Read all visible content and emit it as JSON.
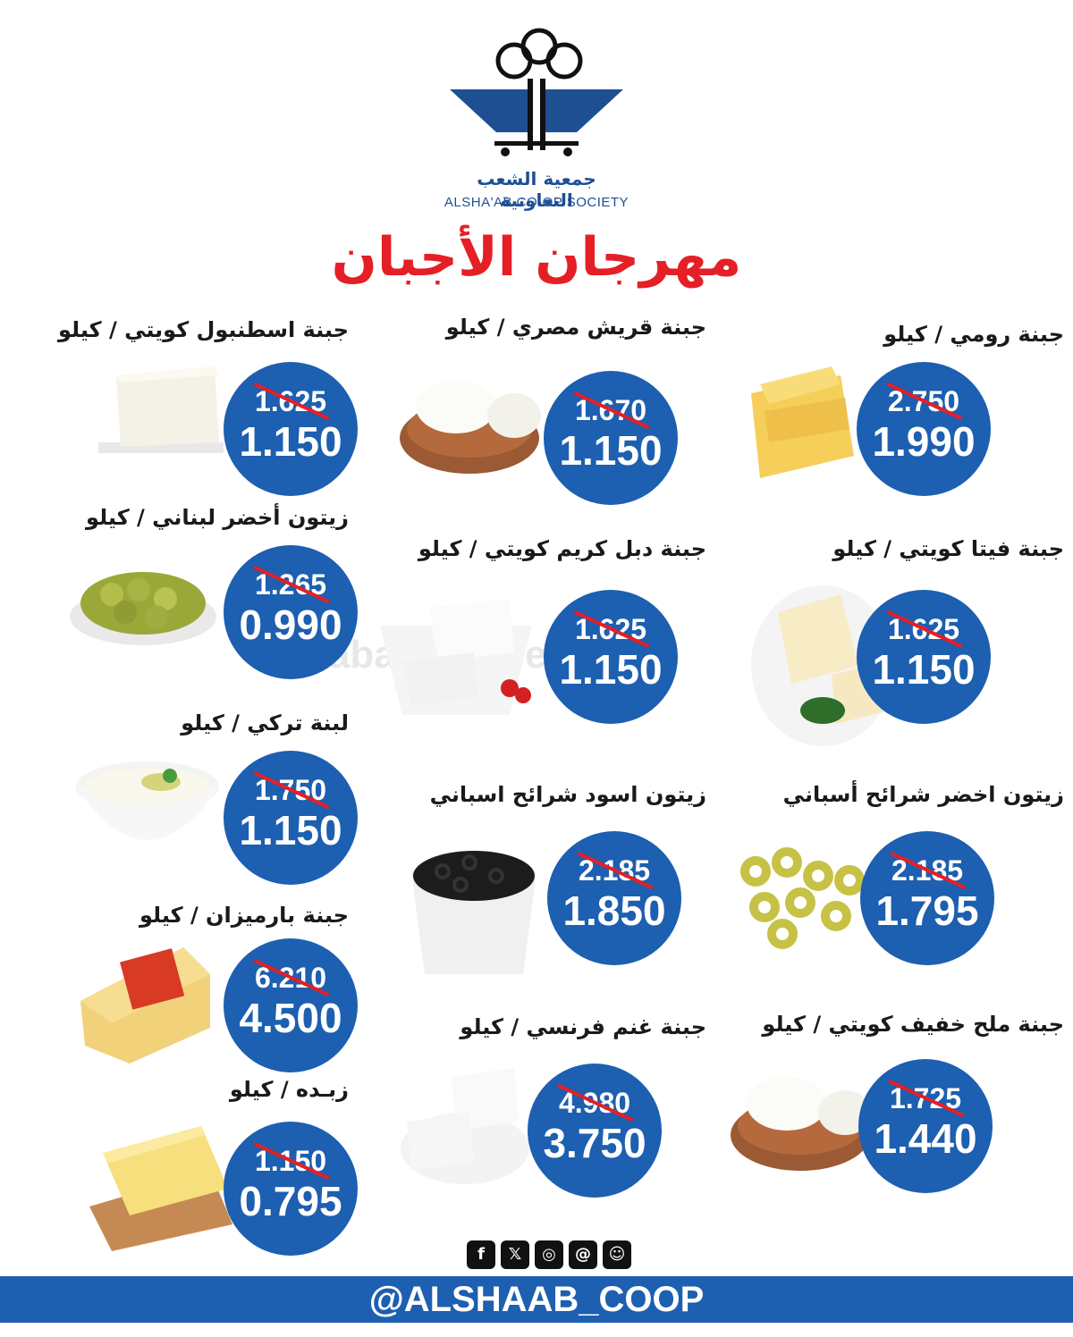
{
  "logo": {
    "arabic": "جمعية الشعب التعاونية",
    "english": "ALSHA'AB CO-OP SOCIETY"
  },
  "title": "مهرجان الأجبان",
  "watermark": "Yabalashoffers.com",
  "products": [
    {
      "name": "جبنة رومي / كيلو",
      "old_price": "2.750",
      "new_price": "1.990",
      "icon": "yellow-cheese-slices"
    },
    {
      "name": "جبنة قريش مصري / كيلو",
      "old_price": "1.670",
      "new_price": "1.150",
      "icon": "white-cheese-board"
    },
    {
      "name": "جبنة اسطنبول كويتي / كيلو",
      "old_price": "1.625",
      "new_price": "1.150",
      "icon": "white-cheese-block"
    },
    {
      "name": "جبنة فيتا كويتي / كيلو",
      "old_price": "1.625",
      "new_price": "1.150",
      "icon": "feta-cheese-plate"
    },
    {
      "name": "جبنة دبل كريم كويتي / كيلو",
      "old_price": "1.625",
      "new_price": "1.150",
      "icon": "cream-cheese-plate"
    },
    {
      "name": "زيتون أخضر لبناني / كيلو",
      "old_price": "1.265",
      "new_price": "0.990",
      "icon": "green-olives-plate"
    },
    {
      "name": "زيتون اخضر شرائح أسباني",
      "old_price": "2.185",
      "new_price": "1.795",
      "icon": "green-olive-slices"
    },
    {
      "name": "زيتون اسود شرائح اسباني",
      "old_price": "2.185",
      "new_price": "1.850",
      "icon": "black-olive-slices"
    },
    {
      "name": "لبنة تركي / كيلو",
      "old_price": "1.750",
      "new_price": "1.150",
      "icon": "labneh-bowl"
    },
    {
      "name": "جبنة بارميزان / كيلو",
      "old_price": "6.210",
      "new_price": "4.500",
      "icon": "parmesan-wedge"
    },
    {
      "name": "جبنة ملح خفيف كويتي / كيلو",
      "old_price": "1.725",
      "new_price": "1.440",
      "icon": "white-cheese-board"
    },
    {
      "name": "جبنة غنم فرنسي / كيلو",
      "old_price": "4.980",
      "new_price": "3.750",
      "icon": "sheep-cheese-slices"
    },
    {
      "name": "زبـده / كيلو",
      "old_price": "1.150",
      "new_price": "0.795",
      "icon": "butter-block"
    }
  ],
  "social": [
    "f",
    "𝕏",
    "◎",
    "@",
    "☺"
  ],
  "footer": {
    "handle": "@ALSHAAB_COOP"
  },
  "colors": {
    "brand_blue": "#1d5fb0",
    "title_red": "#e51f26"
  }
}
